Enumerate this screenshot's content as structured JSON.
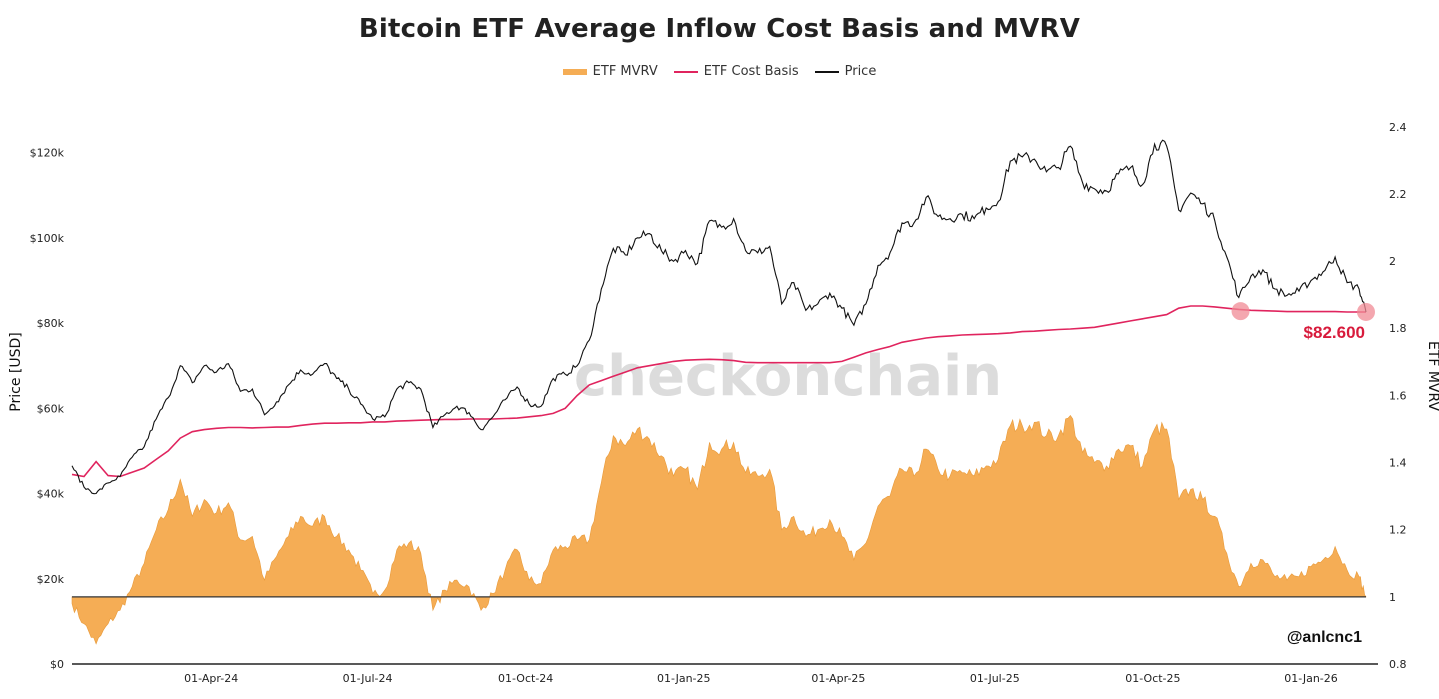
{
  "chart_data": {
    "type": "line",
    "title": "Bitcoin ETF Average Inflow Cost Basis and MVRV",
    "legend": [
      {
        "name": "ETF MVRV",
        "kind": "area",
        "color": "#f5ad55"
      },
      {
        "name": "ETF Cost Basis",
        "kind": "line",
        "color": "#e0245e"
      },
      {
        "name": "Price",
        "kind": "line",
        "color": "#111111"
      }
    ],
    "legend_position": "top-center",
    "y_left": {
      "label": "Price [USD]",
      "ticks": [
        "$0",
        "$20k",
        "$40k",
        "$60k",
        "$80k",
        "$100k",
        "$120k"
      ],
      "tick_values": [
        0,
        20000,
        40000,
        60000,
        80000,
        100000,
        120000
      ],
      "range": [
        0,
        130000
      ]
    },
    "y_right": {
      "label": "ETF MVRV",
      "ticks": [
        "0.8",
        "1",
        "1.2",
        "1.4",
        "1.6",
        "1.8",
        "2",
        "2.2",
        "2.4"
      ],
      "tick_values": [
        0.8,
        1.0,
        1.2,
        1.4,
        1.6,
        1.8,
        2.0,
        2.2,
        2.4
      ],
      "range": [
        0.8,
        2.45
      ]
    },
    "x_axis": {
      "ticks": [
        "01-Apr-24",
        "01-Jul-24",
        "01-Oct-24",
        "01-Jan-25",
        "01-Apr-25",
        "01-Jul-25",
        "01-Oct-25",
        "01-Jan-26"
      ],
      "tick_dates": [
        "2024-04-01",
        "2024-07-01",
        "2024-10-01",
        "2025-01-01",
        "2025-04-01",
        "2025-07-01",
        "2025-10-01",
        "2026-01-01"
      ],
      "range": [
        "2024-01-11",
        "2026-02-02"
      ]
    },
    "mvrv_baseline": 1.0,
    "grid": false,
    "x": [
      "2024-01-11",
      "2024-01-18",
      "2024-01-25",
      "2024-02-01",
      "2024-02-08",
      "2024-02-15",
      "2024-02-22",
      "2024-02-29",
      "2024-03-07",
      "2024-03-14",
      "2024-03-21",
      "2024-03-28",
      "2024-04-04",
      "2024-04-11",
      "2024-04-18",
      "2024-04-25",
      "2024-05-02",
      "2024-05-09",
      "2024-05-16",
      "2024-05-23",
      "2024-05-30",
      "2024-06-06",
      "2024-06-13",
      "2024-06-20",
      "2024-06-27",
      "2024-07-04",
      "2024-07-11",
      "2024-07-18",
      "2024-07-25",
      "2024-08-01",
      "2024-08-08",
      "2024-08-15",
      "2024-08-22",
      "2024-08-29",
      "2024-09-05",
      "2024-09-12",
      "2024-09-19",
      "2024-09-26",
      "2024-10-03",
      "2024-10-10",
      "2024-10-17",
      "2024-10-24",
      "2024-10-31",
      "2024-11-07",
      "2024-11-14",
      "2024-11-21",
      "2024-11-28",
      "2024-12-05",
      "2024-12-12",
      "2024-12-19",
      "2024-12-26",
      "2025-01-02",
      "2025-01-09",
      "2025-01-16",
      "2025-01-23",
      "2025-01-30",
      "2025-02-06",
      "2025-02-13",
      "2025-02-20",
      "2025-02-27",
      "2025-03-06",
      "2025-03-13",
      "2025-03-20",
      "2025-03-27",
      "2025-04-03",
      "2025-04-10",
      "2025-04-17",
      "2025-04-24",
      "2025-05-01",
      "2025-05-08",
      "2025-05-15",
      "2025-05-22",
      "2025-05-29",
      "2025-06-05",
      "2025-06-12",
      "2025-06-19",
      "2025-06-26",
      "2025-07-03",
      "2025-07-10",
      "2025-07-17",
      "2025-07-24",
      "2025-07-31",
      "2025-08-07",
      "2025-08-14",
      "2025-08-21",
      "2025-08-28",
      "2025-09-04",
      "2025-09-11",
      "2025-09-18",
      "2025-09-25",
      "2025-10-02",
      "2025-10-09",
      "2025-10-16",
      "2025-10-23",
      "2025-10-30",
      "2025-11-06",
      "2025-11-13",
      "2025-11-20",
      "2025-11-27",
      "2025-12-04",
      "2025-12-11",
      "2025-12-18",
      "2025-12-25",
      "2026-01-01",
      "2026-01-08",
      "2026-01-15",
      "2026-01-22",
      "2026-01-29",
      "2026-02-02"
    ],
    "series": [
      {
        "name": "Price",
        "axis": "left",
        "values": [
          46500,
          41500,
          40000,
          42500,
          44000,
          48500,
          51000,
          57500,
          62500,
          70000,
          66000,
          70000,
          68500,
          70500,
          64000,
          64500,
          58500,
          61500,
          65500,
          69000,
          68000,
          70500,
          67000,
          64500,
          61000,
          57500,
          58000,
          64500,
          66000,
          64500,
          55500,
          58500,
          60500,
          59000,
          55000,
          58000,
          62000,
          65000,
          61000,
          60500,
          67000,
          68000,
          70000,
          76000,
          88000,
          97500,
          96000,
          100000,
          101000,
          97000,
          94500,
          97000,
          94000,
          104000,
          102500,
          104500,
          97000,
          96500,
          98000,
          84500,
          89500,
          83000,
          84500,
          87000,
          83500,
          79500,
          84500,
          93500,
          96500,
          103500,
          103500,
          109500,
          105000,
          104500,
          105500,
          104500,
          107000,
          108500,
          118000,
          119000,
          118500,
          115500,
          116500,
          121500,
          113000,
          111500,
          111000,
          115000,
          116500,
          112500,
          122000,
          121500,
          106500,
          110500,
          108000,
          104000,
          95500,
          86000,
          91000,
          92500,
          88000,
          86500,
          87500,
          90000,
          92000,
          95500,
          89500,
          88000,
          82600
        ]
      },
      {
        "name": "ETF Cost Basis",
        "axis": "left",
        "values": [
          44500,
          44000,
          47500,
          44200,
          44000,
          45000,
          46000,
          48000,
          50000,
          53000,
          54500,
          55000,
          55300,
          55500,
          55500,
          55400,
          55500,
          55600,
          55600,
          56000,
          56300,
          56500,
          56500,
          56600,
          56600,
          56800,
          56800,
          57000,
          57100,
          57200,
          57300,
          57400,
          57400,
          57500,
          57500,
          57500,
          57600,
          57700,
          58000,
          58300,
          58800,
          60000,
          63000,
          65500,
          66500,
          67500,
          68500,
          69500,
          70000,
          70500,
          71000,
          71300,
          71400,
          71500,
          71400,
          71200,
          70800,
          70700,
          70700,
          70700,
          70700,
          70700,
          70700,
          70700,
          71000,
          72000,
          73000,
          73800,
          74500,
          75500,
          76000,
          76500,
          76800,
          77000,
          77200,
          77300,
          77400,
          77500,
          77700,
          78000,
          78100,
          78300,
          78500,
          78600,
          78800,
          79000,
          79500,
          80000,
          80500,
          81000,
          81500,
          82000,
          83500,
          84000,
          84000,
          83800,
          83500,
          83200,
          83000,
          82900,
          82800,
          82700,
          82700,
          82700,
          82700,
          82700,
          82600,
          82600,
          82600
        ]
      },
      {
        "name": "ETF MVRV",
        "axis": "right",
        "values": [
          0.98,
          0.92,
          0.86,
          0.92,
          0.96,
          1.03,
          1.1,
          1.2,
          1.26,
          1.35,
          1.24,
          1.29,
          1.25,
          1.28,
          1.17,
          1.18,
          1.05,
          1.12,
          1.18,
          1.24,
          1.21,
          1.24,
          1.18,
          1.14,
          1.08,
          1.01,
          1.02,
          1.14,
          1.16,
          1.13,
          0.96,
          1.02,
          1.05,
          1.03,
          0.96,
          1.01,
          1.08,
          1.14,
          1.05,
          1.04,
          1.14,
          1.15,
          1.17,
          1.17,
          1.34,
          1.48,
          1.45,
          1.5,
          1.47,
          1.42,
          1.36,
          1.38,
          1.32,
          1.46,
          1.44,
          1.46,
          1.37,
          1.36,
          1.38,
          1.2,
          1.24,
          1.18,
          1.2,
          1.23,
          1.18,
          1.11,
          1.16,
          1.27,
          1.3,
          1.38,
          1.36,
          1.44,
          1.38,
          1.36,
          1.37,
          1.36,
          1.39,
          1.41,
          1.51,
          1.51,
          1.52,
          1.48,
          1.48,
          1.54,
          1.43,
          1.4,
          1.39,
          1.44,
          1.45,
          1.39,
          1.5,
          1.5,
          1.29,
          1.32,
          1.29,
          1.24,
          1.13,
          1.03,
          1.1,
          1.11,
          1.06,
          1.05,
          1.06,
          1.09,
          1.11,
          1.15,
          1.08,
          1.06,
          1.0
        ]
      }
    ],
    "annotations": [
      {
        "type": "marker",
        "date": "2025-11-21",
        "value": 82800,
        "label": ""
      },
      {
        "type": "marker",
        "date": "2026-02-02",
        "value": 82600,
        "label": "$82.600"
      }
    ],
    "watermark": "checkonchain",
    "credit": "@anlcnc1"
  }
}
